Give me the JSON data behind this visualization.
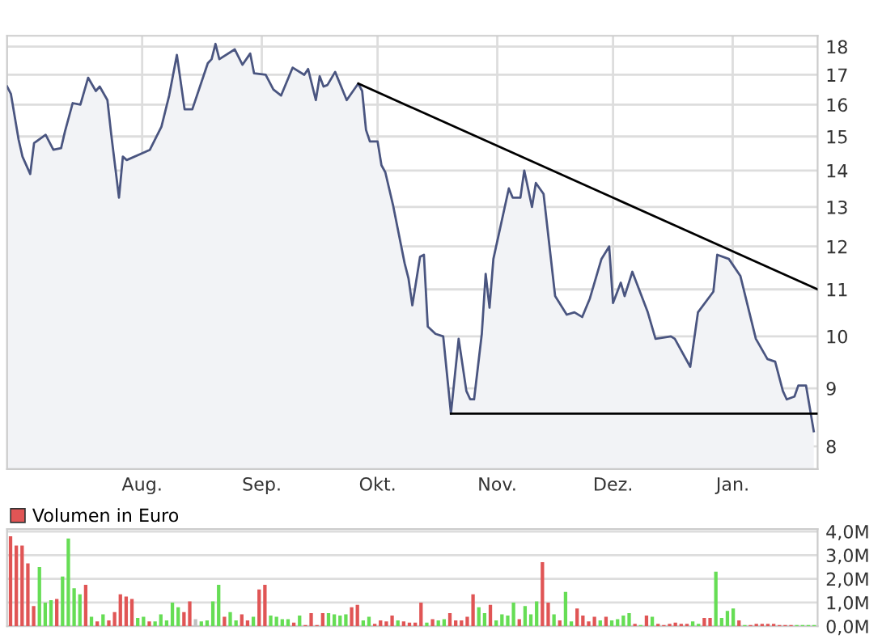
{
  "chart_data": [
    {
      "type": "area",
      "log": "y",
      "grid": true,
      "tick_labels": "xy",
      "ylim": [
        7.64,
        18.4
      ],
      "categories": [
        null,
        null,
        null,
        null,
        null,
        null,
        null,
        null,
        null,
        null,
        null,
        null,
        null,
        null,
        null,
        null,
        null,
        null,
        null,
        null,
        null,
        null,
        null,
        null,
        null,
        null,
        null,
        null,
        null,
        null,
        null,
        null,
        null,
        null,
        null,
        "Aug.",
        null,
        null,
        null,
        null,
        null,
        null,
        null,
        null,
        null,
        null,
        null,
        null,
        null,
        null,
        null,
        null,
        null,
        null,
        null,
        null,
        null,
        null,
        null,
        null,
        null,
        null,
        null,
        null,
        null,
        null,
        "Sep.",
        null,
        null,
        null,
        null,
        null,
        null,
        null,
        null,
        null,
        null,
        null,
        null,
        null,
        null,
        null,
        null,
        null,
        null,
        null,
        null,
        null,
        null,
        null,
        null,
        null,
        null,
        null,
        null,
        null,
        "Okt.",
        null,
        null,
        null,
        null,
        null,
        null,
        null,
        null,
        null,
        null,
        null,
        null,
        null,
        null,
        null,
        null,
        null,
        null,
        null,
        null,
        null,
        null,
        null,
        null,
        null,
        null,
        null,
        null,
        null,
        null,
        "Nov.",
        null,
        null,
        null,
        null,
        null,
        null,
        null,
        null,
        null,
        null,
        null,
        null,
        null,
        null,
        null,
        null,
        null,
        null,
        null,
        null,
        null,
        null,
        null,
        null,
        null,
        null,
        null,
        null,
        null,
        "Dez.",
        null,
        null,
        null,
        null,
        null,
        null,
        null,
        null,
        null,
        null,
        null,
        null,
        null,
        null,
        null,
        null,
        null,
        null,
        null,
        null,
        null,
        null,
        null,
        null,
        null,
        null,
        null,
        null,
        null,
        null,
        "Jan.",
        null,
        null,
        null,
        null,
        null,
        null,
        null,
        null,
        null,
        null,
        null,
        null,
        null,
        null,
        null,
        null,
        null,
        null,
        null,
        null,
        null,
        null
      ],
      "yticks": [
        8,
        9,
        10,
        11,
        12,
        13,
        14,
        15,
        16,
        17,
        18
      ],
      "series": [
        {
          "type": "area",
          "color": "#4a5580",
          "values": [
            16.6,
            16.35,
            null,
            14.9,
            14.4,
            null,
            13.9,
            14.8,
            null,
            null,
            15.05,
            null,
            14.6,
            null,
            14.65,
            15.15,
            null,
            16.05,
            null,
            16.0,
            null,
            16.9,
            null,
            16.45,
            16.6,
            null,
            16.15,
            15.05,
            null,
            13.25,
            14.4,
            14.3,
            null,
            null,
            null,
            14.5,
            null,
            14.6,
            null,
            null,
            15.3,
            null,
            16.3,
            null,
            17.7,
            null,
            15.85,
            null,
            15.85,
            null,
            null,
            null,
            17.4,
            17.55,
            18.1,
            17.55,
            null,
            null,
            null,
            17.9,
            null,
            17.35,
            null,
            17.75,
            17.05,
            null,
            null,
            17.0,
            null,
            16.5,
            null,
            16.3,
            null,
            null,
            17.25,
            null,
            null,
            17.0,
            17.2,
            null,
            16.15,
            16.95,
            16.6,
            16.65,
            null,
            17.1,
            null,
            null,
            16.15,
            null,
            null,
            16.7,
            16.45,
            15.2,
            14.85,
            null,
            14.85,
            14.15,
            13.95,
            null,
            13.05,
            null,
            null,
            11.6,
            11.25,
            10.65,
            null,
            11.75,
            11.8,
            10.2,
            null,
            10.05,
            null,
            10.0,
            null,
            8.55,
            null,
            9.95,
            null,
            8.95,
            8.8,
            8.8,
            null,
            10.05,
            11.35,
            10.6,
            11.7,
            null,
            null,
            null,
            13.5,
            13.25,
            null,
            13.25,
            14.0,
            null,
            13.0,
            13.65,
            null,
            13.35,
            null,
            null,
            10.85,
            null,
            null,
            10.45,
            null,
            10.5,
            null,
            10.4,
            null,
            10.8,
            null,
            null,
            11.7,
            null,
            12.0,
            10.7,
            null,
            11.15,
            10.85,
            null,
            11.4,
            null,
            null,
            null,
            10.5,
            null,
            9.95,
            null,
            null,
            null,
            10.0,
            9.95,
            null,
            null,
            null,
            9.4,
            null,
            10.5,
            null,
            null,
            null,
            10.95,
            11.8,
            null,
            null,
            11.7,
            null,
            null,
            11.3,
            null,
            null,
            null,
            9.95,
            null,
            null,
            9.55,
            null,
            9.5,
            null,
            8.95,
            8.8,
            null,
            8.85,
            9.05,
            null,
            9.05,
            null,
            8.25,
            null
          ]
        },
        {
          "type": "line",
          "color": "#000000",
          "values": [
            null,
            null,
            null,
            null,
            null,
            null,
            null,
            null,
            null,
            null,
            null,
            null,
            null,
            null,
            null,
            null,
            null,
            null,
            null,
            null,
            null,
            null,
            null,
            null,
            null,
            null,
            null,
            null,
            null,
            null,
            null,
            null,
            null,
            null,
            null,
            null,
            null,
            null,
            null,
            null,
            null,
            null,
            null,
            null,
            null,
            null,
            null,
            null,
            null,
            null,
            null,
            null,
            null,
            null,
            null,
            null,
            null,
            null,
            null,
            null,
            null,
            null,
            null,
            null,
            null,
            null,
            null,
            null,
            null,
            null,
            null,
            null,
            null,
            null,
            null,
            null,
            null,
            null,
            null,
            null,
            null,
            null,
            null,
            null,
            null,
            null,
            null,
            null,
            null,
            null,
            null,
            16.7,
            null,
            null,
            null,
            null,
            null,
            null,
            null,
            null,
            null,
            null,
            null,
            null,
            null,
            null,
            null,
            null,
            null,
            null,
            null,
            null,
            null,
            null,
            null,
            null,
            null,
            null,
            null,
            null,
            null,
            null,
            null,
            null,
            null,
            null,
            null,
            null,
            null,
            null,
            null,
            null,
            null,
            null,
            null,
            null,
            null,
            null,
            null,
            null,
            null,
            null,
            null,
            null,
            null,
            null,
            null,
            null,
            null,
            null,
            null,
            null,
            null,
            null,
            null,
            null,
            null,
            null,
            null,
            null,
            null,
            null,
            null,
            null,
            null,
            null,
            null,
            null,
            null,
            null,
            null,
            null,
            null,
            null,
            null,
            null,
            null,
            null,
            null,
            null,
            null,
            null,
            null,
            null,
            null,
            null,
            null,
            null,
            null,
            null,
            null,
            null,
            null,
            null,
            null,
            null,
            null,
            null,
            null,
            null,
            null,
            null,
            null,
            null,
            null,
            null,
            null,
            null,
            null,
            null,
            11.0
          ]
        },
        {
          "type": "line",
          "color": "#000000",
          "values": [
            null,
            null,
            null,
            null,
            null,
            null,
            null,
            null,
            null,
            null,
            null,
            null,
            null,
            null,
            null,
            null,
            null,
            null,
            null,
            null,
            null,
            null,
            null,
            null,
            null,
            null,
            null,
            null,
            null,
            null,
            null,
            null,
            null,
            null,
            null,
            null,
            null,
            null,
            null,
            null,
            null,
            null,
            null,
            null,
            null,
            null,
            null,
            null,
            null,
            null,
            null,
            null,
            null,
            null,
            null,
            null,
            null,
            null,
            null,
            null,
            null,
            null,
            null,
            null,
            null,
            null,
            null,
            null,
            null,
            null,
            null,
            null,
            null,
            null,
            null,
            null,
            null,
            null,
            null,
            null,
            null,
            null,
            null,
            null,
            null,
            null,
            null,
            null,
            null,
            null,
            null,
            null,
            null,
            null,
            null,
            null,
            null,
            null,
            null,
            null,
            null,
            null,
            null,
            null,
            null,
            null,
            null,
            null,
            null,
            null,
            null,
            null,
            null,
            null,
            null,
            8.55,
            null,
            null,
            null,
            null,
            null,
            null,
            null,
            null,
            null,
            null,
            null,
            null,
            null,
            null,
            null,
            null,
            null,
            null,
            null,
            null,
            null,
            null,
            null,
            null,
            null,
            null,
            null,
            null,
            null,
            null,
            null,
            null,
            null,
            null,
            null,
            null,
            null,
            null,
            null,
            null,
            null,
            null,
            null,
            null,
            null,
            null,
            null,
            null,
            null,
            null,
            null,
            null,
            null,
            null,
            null,
            null,
            null,
            null,
            null,
            null,
            null,
            null,
            null,
            null,
            null,
            null,
            null,
            null,
            null,
            null,
            null,
            null,
            null,
            null,
            null,
            null,
            null,
            null,
            null,
            null,
            null,
            null,
            null,
            null,
            null,
            null,
            null,
            null,
            null,
            null,
            null,
            null,
            null,
            null,
            8.55
          ]
        }
      ]
    },
    {
      "type": "bar",
      "grid": "y",
      "legend": "top left",
      "tick_labels": "y",
      "categories": [
        null,
        null,
        null,
        null,
        null,
        null,
        null,
        null,
        null,
        null,
        null,
        null,
        null,
        null,
        null,
        null,
        null,
        null,
        null,
        null,
        null,
        null,
        null,
        null,
        null,
        null,
        null,
        null,
        null,
        null,
        null,
        null,
        null,
        null,
        null,
        null,
        null,
        null,
        null,
        null,
        null,
        null,
        null,
        null,
        null,
        null,
        null,
        null,
        null,
        null,
        null,
        null,
        null,
        null,
        null,
        null,
        null,
        null,
        null,
        null,
        null,
        null,
        null,
        null,
        null,
        null,
        null,
        null,
        null,
        null,
        null,
        null,
        null,
        null,
        null,
        null,
        null,
        null,
        null,
        null,
        null,
        null,
        null,
        null,
        null,
        null,
        null,
        null,
        null,
        null,
        null,
        null,
        null,
        null,
        null,
        null,
        null,
        null,
        null,
        null,
        null,
        null,
        null,
        null,
        null,
        null,
        null,
        null,
        null,
        null,
        null,
        null,
        null,
        null,
        null,
        null,
        null,
        null,
        null,
        null,
        null,
        null,
        null,
        null,
        null,
        null,
        null,
        null,
        null,
        null,
        null,
        null,
        null,
        null,
        null,
        null,
        null,
        null,
        null,
        null
      ],
      "ylim": [
        0,
        4.1
      ],
      "yticks": [
        {
          "value": 0,
          "label": "0,0M"
        },
        {
          "value": 1,
          "label": "1,0M"
        },
        {
          "value": 2,
          "label": "2,0M"
        },
        {
          "value": 3,
          "label": "3,0M"
        },
        {
          "value": 4,
          "label": "4,0M"
        }
      ],
      "series": [
        {
          "name": "Volumen in Euro",
          "color": "#e05555",
          "values": [
            3.8,
            3.4,
            3.4,
            2.65,
            0.85,
            2.5,
            1.0,
            1.1,
            1.15,
            2.1,
            3.7,
            1.6,
            1.35,
            1.75,
            0.4,
            0.2,
            0.5,
            0.25,
            0.6,
            1.35,
            1.25,
            1.15,
            0.35,
            0.4,
            0.2,
            0.2,
            0.5,
            0.25,
            1.0,
            0.8,
            0.6,
            1.05,
            0.3,
            0.2,
            0.25,
            1.05,
            1.75,
            0.4,
            0.6,
            0.25,
            0.5,
            0.25,
            0.4,
            1.55,
            1.75,
            0.45,
            0.4,
            0.3,
            0.3,
            0.15,
            0.45,
            0.05,
            0.55,
            0.05,
            0.55,
            0.55,
            0.5,
            0.45,
            0.5,
            0.8,
            0.9,
            0.25,
            0.4,
            0.1,
            0.25,
            0.2,
            0.45,
            0.25,
            0.2,
            0.15,
            0.15,
            1.0,
            0.15,
            0.3,
            0.25,
            0.3,
            0.55,
            0.25,
            0.25,
            0.4,
            1.35,
            0.8,
            0.55,
            0.9,
            0.25,
            0.5,
            0.45,
            1.0,
            0.3,
            0.85,
            0.5,
            1.05,
            2.7,
            1.0,
            0.5,
            0.25,
            1.45,
            0.2,
            0.75,
            0.45,
            0.2,
            0.4,
            0.25,
            0.4,
            0.25,
            0.3,
            0.45,
            0.55,
            0.1,
            0.05,
            0.45,
            0.4,
            0.1,
            0.05,
            0.1,
            0.15,
            0.1,
            0.1,
            0.2,
            0.1,
            0.35,
            0.35,
            2.3,
            0.35,
            0.65,
            0.75,
            0.25,
            0.05,
            0.05,
            0.1,
            0.1,
            0.1,
            0.1,
            0.05,
            0.05,
            0.05,
            0.05,
            0.05,
            0.05,
            0.05
          ],
          "colors": [
            "#e05555",
            "#e05555",
            "#e05555",
            "#e05555",
            "#e05555",
            "#66dd55",
            "#66dd55",
            "#66dd55",
            "#e05555",
            "#66dd55",
            "#66dd55",
            "#66dd55",
            "#66dd55",
            "#e05555",
            "#66dd55",
            "#e05555",
            "#66dd55",
            "#e05555",
            "#e05555",
            "#e05555",
            "#e05555",
            "#e05555",
            "#66dd55",
            "#66dd55",
            "#e05555",
            "#66dd55",
            "#66dd55",
            "#66dd55",
            "#66dd55",
            "#66dd55",
            "#e05555",
            "#e05555",
            "#c0c0c0",
            "#66dd55",
            "#66dd55",
            "#66dd55",
            "#66dd55",
            "#e05555",
            "#66dd55",
            "#66dd55",
            "#e05555",
            "#e05555",
            "#66dd55",
            "#e05555",
            "#e05555",
            "#66dd55",
            "#66dd55",
            "#66dd55",
            "#66dd55",
            "#e05555",
            "#66dd55",
            "#e05555",
            "#e05555",
            "#e05555",
            "#e05555",
            "#66dd55",
            "#66dd55",
            "#66dd55",
            "#66dd55",
            "#e05555",
            "#e05555",
            "#66dd55",
            "#66dd55",
            "#e05555",
            "#e05555",
            "#e05555",
            "#e05555",
            "#66dd55",
            "#e05555",
            "#e05555",
            "#e05555",
            "#e05555",
            "#66dd55",
            "#e05555",
            "#66dd55",
            "#66dd55",
            "#e05555",
            "#e05555",
            "#e05555",
            "#e05555",
            "#e05555",
            "#66dd55",
            "#66dd55",
            "#e05555",
            "#66dd55",
            "#66dd55",
            "#66dd55",
            "#66dd55",
            "#e05555",
            "#66dd55",
            "#66dd55",
            "#66dd55",
            "#e05555",
            "#e05555",
            "#66dd55",
            "#e05555",
            "#66dd55",
            "#66dd55",
            "#e05555",
            "#e05555",
            "#e05555",
            "#e05555",
            "#66dd55",
            "#e05555",
            "#66dd55",
            "#66dd55",
            "#66dd55",
            "#66dd55",
            "#e05555",
            "#66dd55",
            "#e05555",
            "#66dd55",
            "#e05555",
            "#e05555",
            "#e05555",
            "#e05555",
            "#e05555",
            "#e05555",
            "#66dd55",
            "#66dd55",
            "#e05555",
            "#e05555",
            "#66dd55",
            "#66dd55",
            "#66dd55",
            "#66dd55",
            "#e05555",
            "#66dd55",
            "#e05555",
            "#e05555",
            "#e05555",
            "#e05555",
            "#e05555",
            "#e05555",
            "#e05555",
            "#e05555",
            "#66dd55",
            "#66dd55",
            "#66dd55",
            "#66dd55"
          ]
        }
      ]
    }
  ]
}
